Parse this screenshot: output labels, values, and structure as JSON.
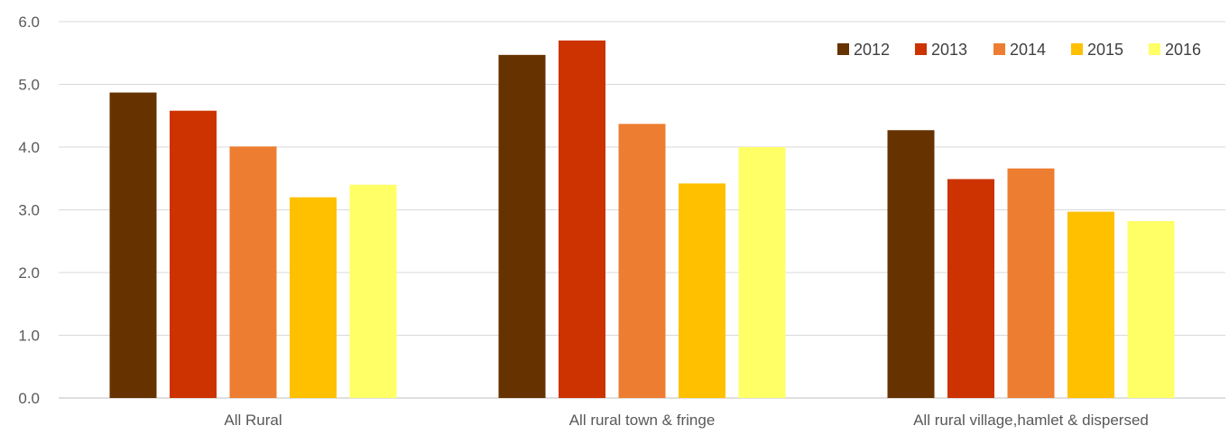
{
  "chart_data": {
    "type": "bar",
    "title": "",
    "xlabel": "",
    "ylabel": "",
    "ylim": [
      0,
      6
    ],
    "yticks": [
      "0.0",
      "1.0",
      "2.0",
      "3.0",
      "4.0",
      "5.0",
      "6.0"
    ],
    "grid": true,
    "legend_position": "top-right",
    "categories": [
      "All Rural",
      "All rural town & fringe",
      "All rural village,hamlet & dispersed"
    ],
    "series": [
      {
        "name": "2012",
        "color": "#663300",
        "values": [
          4.87,
          5.47,
          4.27
        ]
      },
      {
        "name": "2013",
        "color": "#CC3300",
        "values": [
          4.58,
          5.7,
          3.49
        ]
      },
      {
        "name": "2014",
        "color": "#ED7D31",
        "values": [
          4.01,
          4.37,
          3.66
        ]
      },
      {
        "name": "2015",
        "color": "#FFC000",
        "values": [
          3.2,
          3.42,
          2.97
        ]
      },
      {
        "name": "2016",
        "color": "#FFFF66",
        "values": [
          3.4,
          4.0,
          2.82
        ]
      }
    ]
  }
}
